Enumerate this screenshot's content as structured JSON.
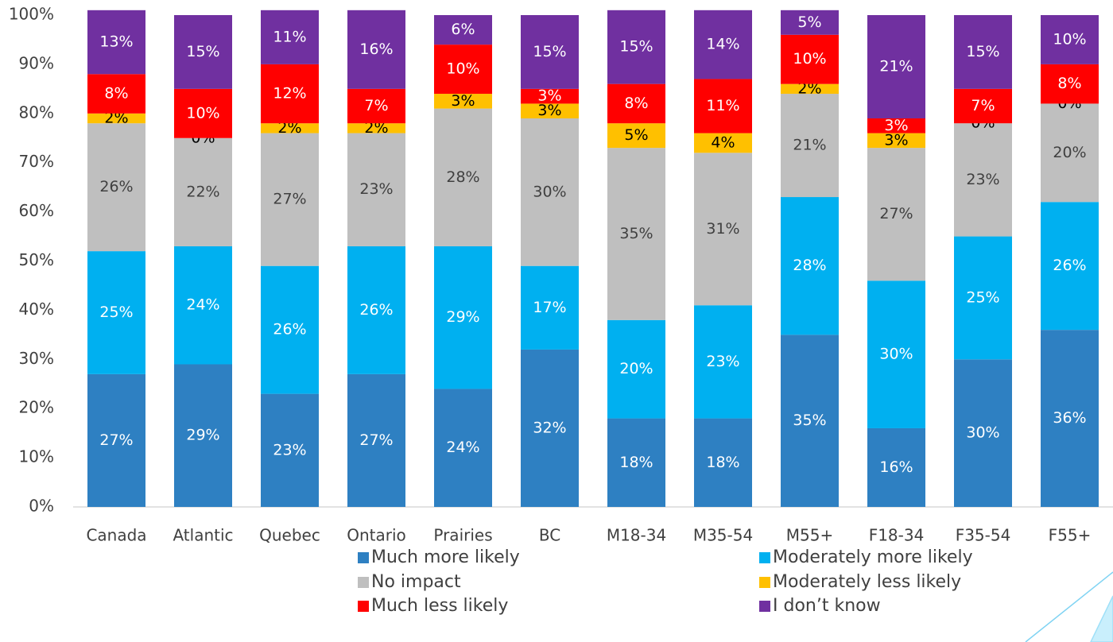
{
  "chart_data": {
    "type": "stacked_bar",
    "categories": [
      "Canada",
      "Atlantic",
      "Quebec",
      "Ontario",
      "Prairies",
      "BC",
      "M18-34",
      "M35-54",
      "M55+",
      "F18-34",
      "F35-54",
      "F55+"
    ],
    "series": [
      {
        "name": "Much more likely",
        "color": "#2e80c2",
        "values": [
          27,
          29,
          23,
          27,
          24,
          32,
          18,
          18,
          35,
          16,
          30,
          36
        ]
      },
      {
        "name": "Moderately more likely",
        "color": "#00b0f0",
        "values": [
          25,
          24,
          26,
          26,
          29,
          17,
          20,
          23,
          28,
          30,
          25,
          26
        ]
      },
      {
        "name": "No impact",
        "color": "#bfbfbf",
        "values": [
          26,
          22,
          27,
          23,
          28,
          30,
          35,
          31,
          21,
          27,
          23,
          20
        ]
      },
      {
        "name": "Moderately less likely",
        "color": "#ffc000",
        "values": [
          2,
          0,
          2,
          2,
          3,
          3,
          5,
          4,
          2,
          3,
          0,
          0
        ]
      },
      {
        "name": "Much less likely",
        "color": "#ff0000",
        "values": [
          8,
          10,
          12,
          7,
          10,
          3,
          8,
          11,
          10,
          3,
          7,
          8
        ]
      },
      {
        "name": "I don’t know",
        "color": "#7030a0",
        "values": [
          13,
          15,
          11,
          16,
          6,
          15,
          15,
          14,
          5,
          21,
          15,
          10
        ]
      }
    ],
    "value_labels": [
      [
        "27%",
        "29%",
        "23%",
        "27%",
        "24%",
        "32%",
        "18%",
        "18%",
        "35%",
        "16%",
        "30%",
        "36%"
      ],
      [
        "25%",
        "24%",
        "26%",
        "26%",
        "29%",
        "17%",
        "20%",
        "23%",
        "28%",
        "30%",
        "25%",
        "26%"
      ],
      [
        "26%",
        "22%",
        "27%",
        "23%",
        "28%",
        "30%",
        "35%",
        "31%",
        "21%",
        "27%",
        "23%",
        "20%"
      ],
      [
        "2%",
        "0%",
        "2%",
        "2%",
        "3%",
        "3%",
        "5%",
        "4%",
        "2%",
        "3%",
        "0%",
        "0%"
      ],
      [
        "8%",
        "10%",
        "12%",
        "7%",
        "10%",
        "3%",
        "8%",
        "11%",
        "10%",
        "3%",
        "7%",
        "8%"
      ],
      [
        "13%",
        "15%",
        "11%",
        "16%",
        "6%",
        "15%",
        "15%",
        "14%",
        "5%",
        "21%",
        "15%",
        "10%"
      ]
    ],
    "ylim": [
      0,
      100
    ],
    "yticks": [
      {
        "value": 0,
        "label": "0%"
      },
      {
        "value": 10,
        "label": "10%"
      },
      {
        "value": 20,
        "label": "20%"
      },
      {
        "value": 30,
        "label": "30%"
      },
      {
        "value": 40,
        "label": "40%"
      },
      {
        "value": 50,
        "label": "50%"
      },
      {
        "value": 60,
        "label": "60%"
      },
      {
        "value": 70,
        "label": "70%"
      },
      {
        "value": 80,
        "label": "80%"
      },
      {
        "value": 90,
        "label": "90%"
      },
      {
        "value": 100,
        "label": "100%"
      }
    ],
    "legend": "bottom"
  }
}
